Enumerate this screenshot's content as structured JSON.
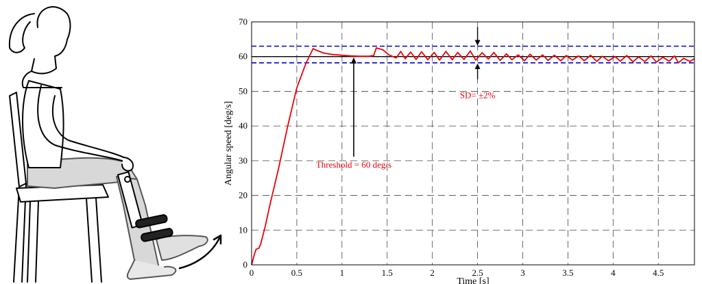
{
  "illustration": {
    "icon": "seated-woman-knee-extension-icon"
  },
  "chart_data": {
    "type": "line",
    "title": "",
    "xlabel": "Time [s]",
    "ylabel": "Angular speed [deg/s]",
    "xlim": [
      0,
      4.9
    ],
    "ylim": [
      0,
      70
    ],
    "x_ticks": [
      "0",
      "0.5",
      "1",
      "1.5",
      "2",
      "2.5",
      "3",
      "3.5",
      "4",
      "4.5"
    ],
    "x_tick_values": [
      0,
      0.5,
      1,
      1.5,
      2,
      2.5,
      3,
      3.5,
      4,
      4.5
    ],
    "y_ticks": [
      "0",
      "10",
      "20",
      "30",
      "40",
      "50",
      "60",
      "70"
    ],
    "y_tick_values": [
      0,
      10,
      20,
      30,
      40,
      50,
      60,
      70
    ],
    "grid": true,
    "series": [
      {
        "color": "#e8000b",
        "x": [
          0,
          0.03,
          0.05,
          0.08,
          0.1,
          0.15,
          0.2,
          0.3,
          0.4,
          0.5,
          0.6,
          0.68,
          0.72,
          0.8,
          0.9,
          1.0,
          1.1,
          1.2,
          1.3,
          1.35,
          1.38,
          1.45,
          1.52,
          1.6,
          1.65,
          1.7,
          1.76,
          1.82,
          1.88,
          1.95,
          2.02,
          2.08,
          2.15,
          2.22,
          2.28,
          2.35,
          2.42,
          2.48,
          2.55,
          2.62,
          2.68,
          2.75,
          2.82,
          2.88,
          2.95,
          3.02,
          3.08,
          3.15,
          3.22,
          3.28,
          3.35,
          3.42,
          3.48,
          3.55,
          3.62,
          3.68,
          3.75,
          3.82,
          3.88,
          3.95,
          4.02,
          4.08,
          4.15,
          4.22,
          4.28,
          4.35,
          4.42,
          4.48,
          4.55,
          4.62,
          4.68,
          4.72,
          4.78,
          4.85,
          4.9
        ],
        "values": [
          0,
          3,
          4.5,
          4.8,
          6,
          11,
          17,
          28,
          40,
          51,
          58,
          62.3,
          61.8,
          61,
          60.6,
          60.4,
          60.2,
          60.1,
          60.1,
          60.3,
          62.5,
          62,
          60.5,
          59.6,
          61.5,
          59.4,
          61.3,
          59.2,
          61.4,
          59.1,
          61.2,
          59.0,
          61.5,
          59.1,
          61.2,
          59.2,
          61.6,
          59.0,
          61.1,
          59.3,
          61.2,
          58.9,
          60.8,
          59.1,
          60.5,
          58.8,
          60.7,
          59.0,
          60.5,
          58.9,
          60.4,
          58.8,
          60.3,
          59.0,
          60.2,
          58.8,
          60.4,
          58.6,
          60.1,
          58.8,
          60.0,
          58.7,
          60.3,
          58.5,
          59.9,
          58.6,
          60.2,
          58.4,
          59.8,
          58.7,
          60.2,
          58.2,
          59.5,
          58.6,
          59.4
        ]
      }
    ],
    "reference_lines": [
      {
        "y": 60,
        "color": "#000000",
        "style": "solid"
      },
      {
        "y": 63,
        "color": "#0000d0",
        "style": "dashed"
      },
      {
        "y": 58.2,
        "color": "#0000d0",
        "style": "dashed"
      }
    ],
    "annotations": [
      {
        "text": "Threshold = 60 deg/s",
        "x_data": 1.13,
        "y_data": 30,
        "arrow_to": [
          1.13,
          60
        ]
      },
      {
        "text": "SD= ±2%",
        "x_data": 2.5,
        "y_data": 48,
        "sd_arrow": {
          "x": 2.5,
          "upper": 63,
          "lower": 58.2
        }
      }
    ]
  }
}
